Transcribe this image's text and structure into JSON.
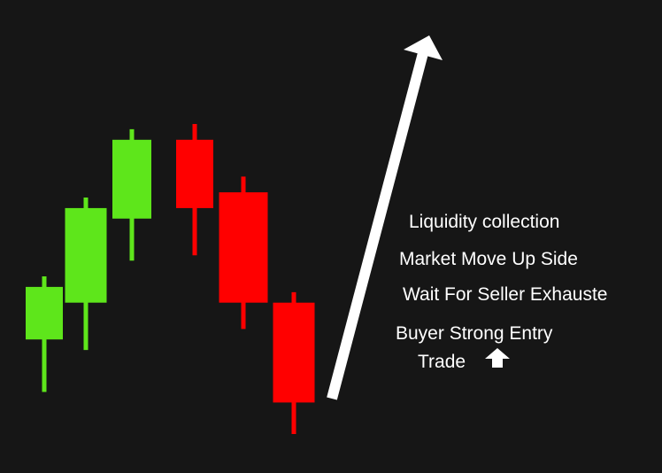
{
  "chart_data": {
    "type": "candlestick",
    "candles": [
      {
        "open": 1.0,
        "high": 2.2,
        "low": 0.0,
        "close": 2.0
      },
      {
        "open": 1.7,
        "high": 3.7,
        "low": 0.8,
        "close": 3.5
      },
      {
        "open": 3.3,
        "high": 5.0,
        "low": 2.5,
        "close": 4.8
      },
      {
        "open": 4.8,
        "high": 5.1,
        "low": 2.6,
        "close": 3.5
      },
      {
        "open": 3.8,
        "high": 4.1,
        "low": 1.2,
        "close": 1.7
      },
      {
        "open": 1.7,
        "high": 1.9,
        "low": -0.8,
        "close": -0.2
      }
    ],
    "trend_arrow": {
      "direction": "up"
    },
    "annotations": [
      "Liquidity collection",
      "Market Move Up Side",
      "Wait For Seller Exhauste",
      "Buyer Strong Entry",
      "Trade"
    ],
    "title": "",
    "xlabel": "",
    "ylabel": "",
    "grid": false,
    "legend": "none"
  },
  "colors": {
    "background": "#161616",
    "bullish": "#5ee61b",
    "bearish": "#ff0000",
    "arrow": "#ffffff",
    "text": "#ffffff"
  },
  "icons": {
    "trade_icon": "up-arrow-icon"
  }
}
